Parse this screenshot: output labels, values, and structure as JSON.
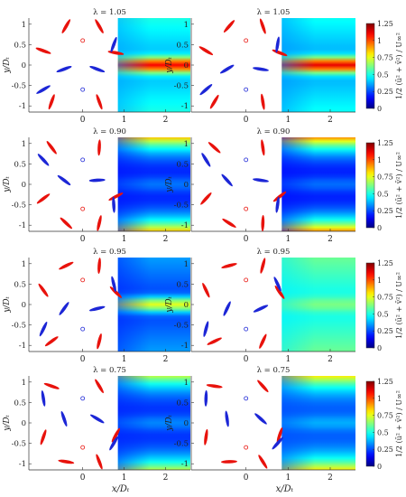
{
  "chart_data": {
    "type": "heatmap",
    "colormap": "jet",
    "colorbar": {
      "label": "1/2 (ū² + v̄²) / U∞²",
      "label_parts": {
        "pre": "½",
        "mid": "(ū² + v̄²)",
        "post": "/U∞²"
      },
      "ticks": [
        0,
        0.25,
        0.5,
        0.75,
        1,
        1.25
      ],
      "tick_labels": [
        "0",
        "0.25",
        "0.5",
        "0.75",
        "1",
        "1.25"
      ],
      "range": [
        0,
        1.25
      ]
    },
    "xlabel": "x/Dₜ",
    "ylabel": "y/Dₜ",
    "x_ticks": [
      0,
      1,
      2
    ],
    "y_ticks": [
      -1,
      -0.5,
      0,
      0.5,
      1
    ],
    "y_tick_labels": [
      "-1",
      "-0.5",
      "0",
      "0.5",
      "1"
    ],
    "xlim": [
      -1.3,
      2.6
    ],
    "ylim": [
      -1.15,
      1.15
    ],
    "field_x_range": [
      0.85,
      2.6
    ],
    "blade_colors": {
      "clockwise_turbine": "#e8120c",
      "counter_turbine": "#1c26d6"
    },
    "rows": [
      {
        "title": "λ = 1.05",
        "fields": [
          {
            "base": 0.35,
            "centre": 1.1
          },
          {
            "base": 0.33,
            "centre": 1.12
          }
        ]
      },
      {
        "title": "λ = 0.90",
        "fields": [
          {
            "base": 0.18,
            "edge": 0.85
          },
          {
            "base": 0.17,
            "edge": 0.92
          }
        ]
      },
      {
        "title": "λ = 0.95",
        "fields": [
          {
            "base": 0.2,
            "centre": 0.75
          },
          {
            "base": 0.45,
            "centre": 0.62
          }
        ]
      },
      {
        "title": "λ = 0.75",
        "fields": [
          {
            "base": 0.2,
            "edge": 0.7
          },
          {
            "base": 0.25,
            "edge": 0.8
          }
        ]
      }
    ],
    "tick_labels_x": [
      "0",
      "1",
      "2"
    ]
  }
}
